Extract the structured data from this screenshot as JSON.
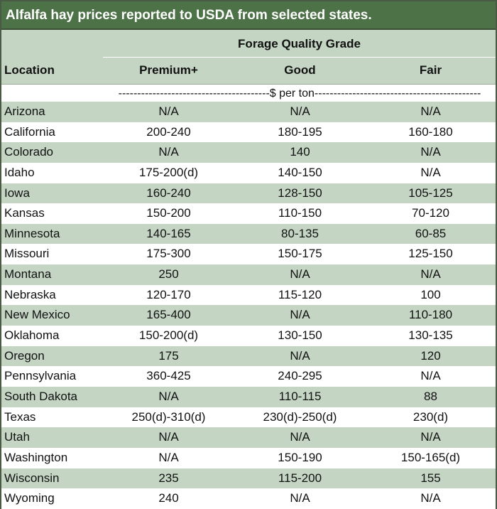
{
  "title": "Alfalfa hay prices reported to USDA from selected states.",
  "header": {
    "group_label": "Forage Quality Grade",
    "location_label": "Location",
    "columns": [
      "Premium+",
      "Good",
      "Fair"
    ]
  },
  "unit_line": "----------------------------------------$ per ton--------------------------------------------",
  "rows": [
    {
      "location": "Arizona",
      "premium": "N/A",
      "good": "N/A",
      "fair": "N/A"
    },
    {
      "location": "California",
      "premium": "200-240",
      "good": "180-195",
      "fair": "160-180"
    },
    {
      "location": "Colorado",
      "premium": "N/A",
      "good": "140",
      "fair": "N/A"
    },
    {
      "location": "Idaho",
      "premium": "175-200(d)",
      "good": "140-150",
      "fair": "N/A"
    },
    {
      "location": "Iowa",
      "premium": "160-240",
      "good": "128-150",
      "fair": "105-125"
    },
    {
      "location": "Kansas",
      "premium": "150-200",
      "good": "110-150",
      "fair": "70-120"
    },
    {
      "location": "Minnesota",
      "premium": "140-165",
      "good": "80-135",
      "fair": "60-85"
    },
    {
      "location": "Missouri",
      "premium": "175-300",
      "good": "150-175",
      "fair": "125-150"
    },
    {
      "location": "Montana",
      "premium": "250",
      "good": "N/A",
      "fair": "N/A"
    },
    {
      "location": "Nebraska",
      "premium": "120-170",
      "good": "115-120",
      "fair": "100"
    },
    {
      "location": "New Mexico",
      "premium": "165-400",
      "good": "N/A",
      "fair": "110-180"
    },
    {
      "location": "Oklahoma",
      "premium": "150-200(d)",
      "good": "130-150",
      "fair": "130-135"
    },
    {
      "location": "Oregon",
      "premium": "175",
      "good": "N/A",
      "fair": "120"
    },
    {
      "location": "Pennsylvania",
      "premium": "360-425",
      "good": "240-295",
      "fair": "N/A"
    },
    {
      "location": "South Dakota",
      "premium": "N/A",
      "good": "110-115",
      "fair": "88"
    },
    {
      "location": "Texas",
      "premium": "250(d)-310(d)",
      "good": "230(d)-250(d)",
      "fair": "230(d)"
    },
    {
      "location": "Utah",
      "premium": "N/A",
      "good": "N/A",
      "fair": "N/A"
    },
    {
      "location": "Washington",
      "premium": "N/A",
      "good": "150-190",
      "fair": "150-165(d)"
    },
    {
      "location": "Wisconsin",
      "premium": "235",
      "good": "115-200",
      "fair": "155"
    },
    {
      "location": "Wyoming",
      "premium": "240",
      "good": "N/A",
      "fair": "N/A"
    }
  ],
  "colors": {
    "title_bg": "#4e7248",
    "band": "#c4d5c4",
    "white": "#ffffff"
  }
}
